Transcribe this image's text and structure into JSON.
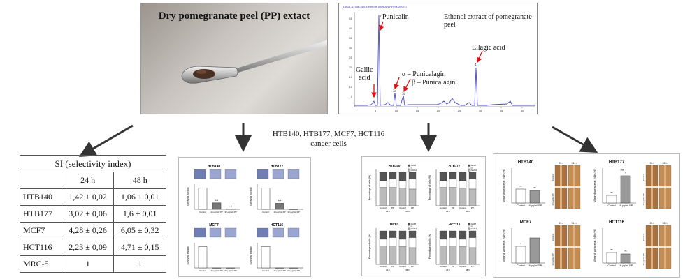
{
  "photo": {
    "title": "Dry pomegranate peel (PP) extact"
  },
  "chromatogram": {
    "title": "Ethanol extract of pomegranate peel",
    "header_text": "DAD1 A, Sig=280,4 Ref=off (BOKAN\\PPE00050.D)",
    "peaks": {
      "gallic_1": "Gallic",
      "gallic_2": "acid",
      "punicalin": "Punicalin",
      "alpha": "α – Punicalagin",
      "beta": "β – Punicalagin",
      "ellagic": "Ellagic acid"
    },
    "peak_numbers": {
      "p1": "1",
      "p2": "2",
      "p3a": "3a",
      "p3b": "3b",
      "p4": "4"
    },
    "x_ticks": [
      "5",
      "10",
      "15",
      "20",
      "25",
      "30",
      "35",
      "40"
    ],
    "y_ticks": [
      "5",
      "10",
      "15",
      "20",
      "25",
      "30",
      "35",
      "40",
      "45"
    ]
  },
  "cells": {
    "line1": "HTB140, HTB177, MCF7, HCT116",
    "line2": "cancer cells"
  },
  "si_table": {
    "title": "SI (selectivity index)",
    "col_24": "24 h",
    "col_48": "48 h",
    "rows": [
      {
        "name": "HTB140",
        "v24": "1,42 ± 0,02",
        "v48": "1,06 ± 0,01"
      },
      {
        "name": "HTB177",
        "v24": "3,02 ± 0,06",
        "v48": "1,6 ± 0,01"
      },
      {
        "name": "MCF7",
        "v24": "4,28 ± 0,26",
        "v48": "6,05 ± 0,32"
      },
      {
        "name": "HCT116",
        "v24": "2,23 ± 0,09",
        "v48": "4,71 ± 0,15"
      },
      {
        "name": "MRC-5",
        "v24": "1",
        "v48": "1"
      }
    ]
  },
  "survival_panel": {
    "subplots": [
      {
        "title": "HTB140",
        "ylabel": "Surviving fraction",
        "cats": [
          "Control",
          "16 μg/mL PP",
          "32 μg/mL PP"
        ],
        "values": [
          1.0,
          0.3,
          0.02
        ],
        "stars": [
          "",
          "***",
          "***"
        ]
      },
      {
        "title": "HTB177",
        "ylabel": "Surviving fraction",
        "cats": [
          "Control",
          "16 μg/mL PP",
          "32 μg/mL PP"
        ],
        "values": [
          1.0,
          0.28,
          0.0
        ],
        "stars": [
          "",
          "***",
          ""
        ]
      },
      {
        "title": "MCF7",
        "ylabel": "Surviving fraction",
        "cats": [
          "Control",
          "16 μg/mL PP",
          "32 μg/mL PP"
        ],
        "values": [
          1.0,
          0.0,
          0.0
        ],
        "stars": [
          "",
          "",
          ""
        ]
      },
      {
        "title": "HCT116",
        "ylabel": "Surviving fraction",
        "cats": [
          "Control",
          "16 μg/mL PP",
          "32 μg/mL PP"
        ],
        "values": [
          1.0,
          0.0,
          0.0
        ],
        "stars": [
          "",
          "",
          ""
        ]
      }
    ]
  },
  "cellcycle_panel": {
    "ylabel": "Percentage of cells (%)",
    "legend": [
      "G2/M",
      "S",
      "G0/G1"
    ],
    "bar_labels": [
      "Control",
      "PP"
    ],
    "time_labels": [
      "24 h",
      "48 h"
    ],
    "subplots": [
      "HTB140",
      "HTB177",
      "MCF7",
      "HCT116"
    ]
  },
  "wound_panel": {
    "subplots": [
      {
        "title": "HTB140",
        "ylabel": "Wound surface at 24 h (%)",
        "cats": [
          "Control",
          "16 μg/mL PP"
        ],
        "values": [
          40,
          36
        ],
        "stars": [
          "**",
          "**"
        ]
      },
      {
        "title": "HTB177",
        "ylabel": "Wound surface at 24 h (%)",
        "cats": [
          "Control",
          "16 μg/mL PP"
        ],
        "values": [
          22,
          78
        ],
        "stars": [
          "**",
          "*"
        ],
        "extra": "##"
      },
      {
        "title": "MCF7",
        "ylabel": "Wound surface at 24 h (%)",
        "cats": [
          "Control",
          "16 μg/mL PP"
        ],
        "values": [
          48,
          72
        ],
        "stars": [
          "*",
          ""
        ]
      },
      {
        "title": "HCT116",
        "ylabel": "Wound surface at 24 h (%)",
        "cats": [
          "Control",
          "16 μg/mL PP"
        ],
        "values": [
          30,
          26
        ],
        "stars": [
          "**",
          "**"
        ]
      }
    ],
    "time_labels": [
      "0 h",
      "24 h"
    ],
    "row_labels": [
      "Control",
      "16 μg/mL PP"
    ]
  }
}
